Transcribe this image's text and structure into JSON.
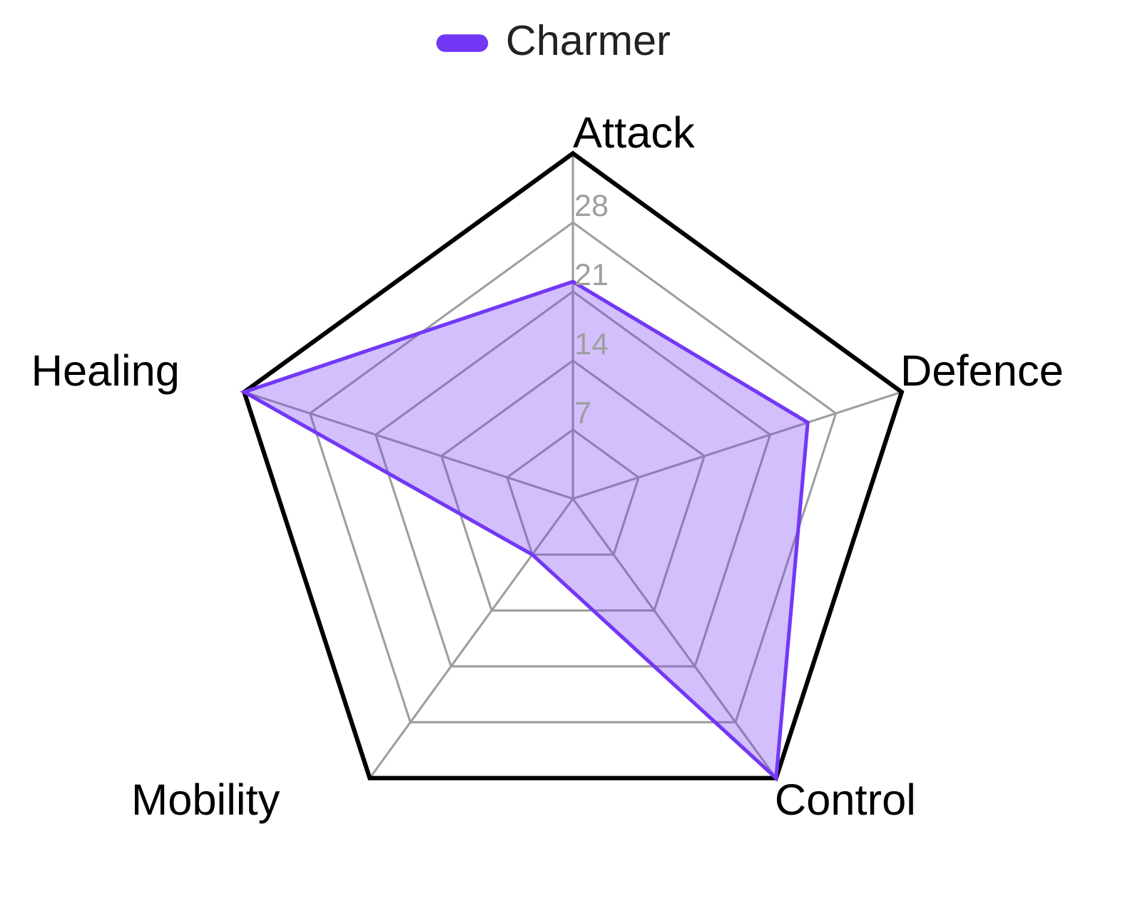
{
  "chart_data": {
    "type": "radar",
    "categories": [
      "Attack",
      "Defence",
      "Control",
      "Mobility",
      "Healing"
    ],
    "series": [
      {
        "name": "Charmer",
        "color": "#7338f5",
        "values": [
          22,
          25,
          35,
          7,
          35
        ]
      }
    ],
    "ylim": [
      0,
      35
    ],
    "yticks": [
      7,
      14,
      21,
      28
    ],
    "grid": true,
    "legend": "top"
  }
}
